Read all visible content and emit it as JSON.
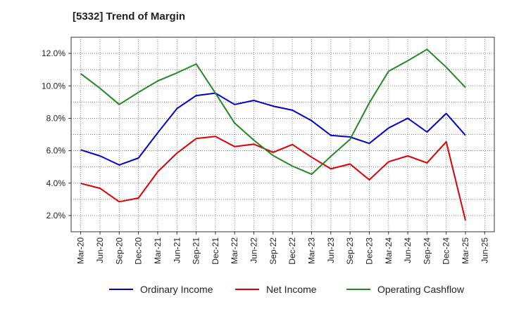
{
  "chart_data": {
    "type": "line",
    "title": "[5332]  Trend of Margin",
    "xlabel": "",
    "ylabel": "",
    "x_ticks": [
      "Mar-20",
      "Jun-20",
      "Sep-20",
      "Dec-20",
      "Mar-21",
      "Jun-21",
      "Sep-21",
      "Dec-21",
      "Mar-22",
      "Jun-22",
      "Sep-22",
      "Dec-22",
      "Mar-23",
      "Jun-23",
      "Sep-23",
      "Dec-23",
      "Mar-24",
      "Jun-24",
      "Sep-24",
      "Dec-24",
      "Mar-25",
      "Jun-25"
    ],
    "y_ticks": [
      "2.0%",
      "4.0%",
      "6.0%",
      "8.0%",
      "10.0%",
      "12.0%"
    ],
    "ylim": [
      1.0,
      13.0
    ],
    "grid": true,
    "legend_position": "bottom",
    "categories": [
      "Mar-20",
      "Jun-20",
      "Sep-20",
      "Dec-20",
      "Mar-21",
      "Jun-21",
      "Sep-21",
      "Dec-21",
      "Mar-22",
      "Jun-22",
      "Sep-22",
      "Dec-22",
      "Mar-23",
      "Jun-23",
      "Sep-23",
      "Dec-23",
      "Mar-24",
      "Jun-24",
      "Sep-24",
      "Dec-24",
      "Mar-25"
    ],
    "series": [
      {
        "name": "Ordinary Income",
        "color": "#0000cc",
        "values": [
          6.05,
          5.68,
          5.12,
          5.55,
          7.1,
          8.6,
          9.4,
          9.55,
          8.85,
          9.1,
          8.75,
          8.5,
          7.85,
          6.95,
          6.85,
          6.45,
          7.4,
          8.0,
          7.15,
          8.3,
          6.95
        ]
      },
      {
        "name": "Net Income",
        "color": "#dd0000",
        "values": [
          3.98,
          3.68,
          2.85,
          3.08,
          4.7,
          5.85,
          6.75,
          6.88,
          6.25,
          6.4,
          5.9,
          6.38,
          5.6,
          4.88,
          5.18,
          4.2,
          5.32,
          5.68,
          5.25,
          6.55,
          1.7
        ]
      },
      {
        "name": "Operating Cashflow",
        "color": "#228822",
        "values": [
          10.75,
          9.85,
          8.85,
          9.6,
          10.3,
          10.8,
          11.35,
          9.55,
          7.7,
          6.65,
          5.7,
          5.05,
          4.55,
          5.65,
          6.7,
          8.95,
          10.9,
          11.55,
          12.25,
          11.15,
          9.9
        ]
      }
    ]
  }
}
